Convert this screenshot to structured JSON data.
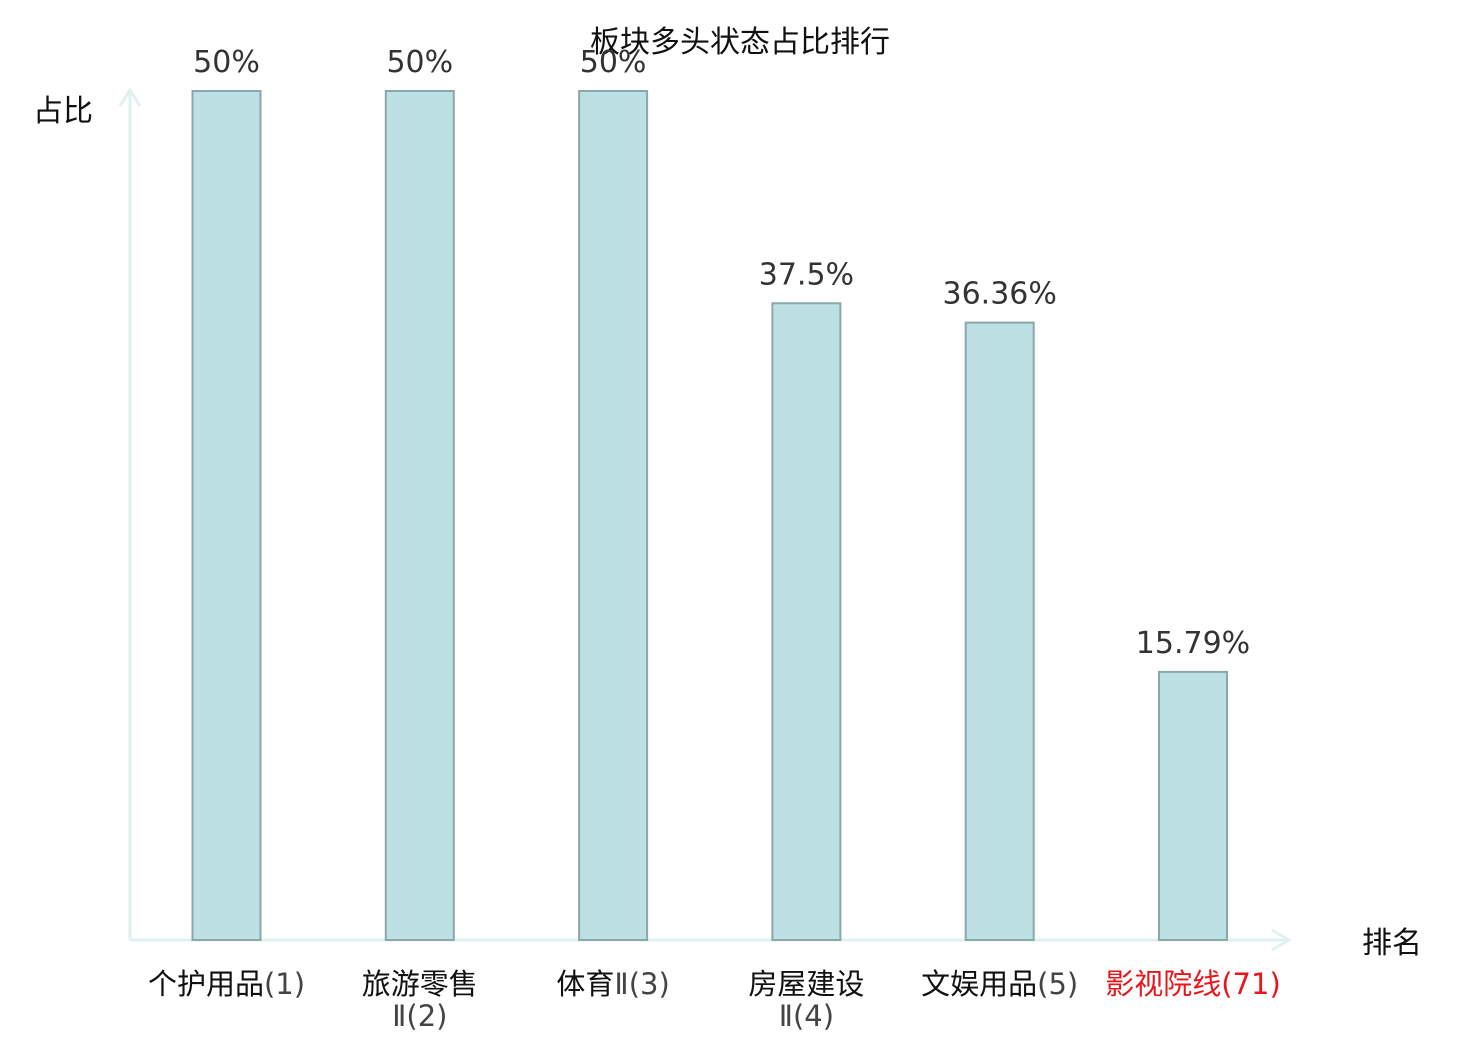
{
  "chart_data": {
    "type": "bar",
    "title": "板块多头状态占比排行",
    "ylabel": "占比",
    "xlabel": "排名",
    "ylim": [
      0,
      50
    ],
    "categories": [
      {
        "name_lines": [
          "个护用品"
        ],
        "rank_lines": [
          "(1)"
        ],
        "highlight": false
      },
      {
        "name_lines": [
          "旅游零售"
        ],
        "rank_lines": [
          "Ⅱ(2)"
        ],
        "highlight": false
      },
      {
        "name_lines": [
          "体育"
        ],
        "rank_lines": [
          "Ⅱ(3)"
        ],
        "highlight": false
      },
      {
        "name_lines": [
          "房屋建设"
        ],
        "rank_lines": [
          "Ⅱ(4)"
        ],
        "highlight": false
      },
      {
        "name_lines": [
          "文娱用品"
        ],
        "rank_lines": [
          "(5)"
        ],
        "highlight": false
      },
      {
        "name_lines": [
          "影视院线"
        ],
        "rank_lines": [
          "(71)"
        ],
        "highlight": true
      }
    ],
    "values": [
      50,
      50,
      50,
      37.5,
      36.36,
      15.79
    ],
    "value_labels": [
      "50%",
      "50%",
      "50%",
      "37.5%",
      "36.36%",
      "15.79%"
    ],
    "colors": {
      "bar_fill": "#bce0e3",
      "bar_stroke": "#8aa8aa",
      "axis": "#dff2ef",
      "label": "#111111",
      "rank_label": "#444444",
      "highlight": "#e8151b",
      "value_label": "#333333"
    }
  }
}
